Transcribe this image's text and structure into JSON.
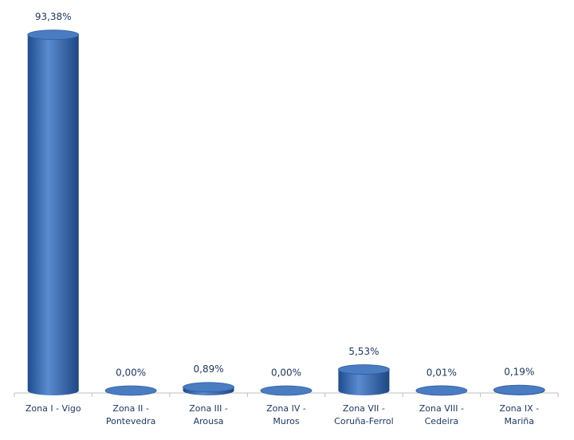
{
  "chart_data": {
    "type": "bar",
    "categories": [
      "Zona I - Vigo",
      "Zona II - Pontevedra",
      "Zona III - Arousa",
      "Zona IV - Muros",
      "Zona VII - Coruña-Ferrol",
      "Zona VIII - Cedeira",
      "Zona IX - Mariña"
    ],
    "values": [
      93.38,
      0.0,
      0.89,
      0.0,
      5.53,
      0.01,
      0.19
    ],
    "value_labels": [
      "93,38%",
      "0,00%",
      "0,89%",
      "0,00%",
      "5,53%",
      "0,01%",
      "0,19%"
    ],
    "color": "#3a6db5"
  }
}
